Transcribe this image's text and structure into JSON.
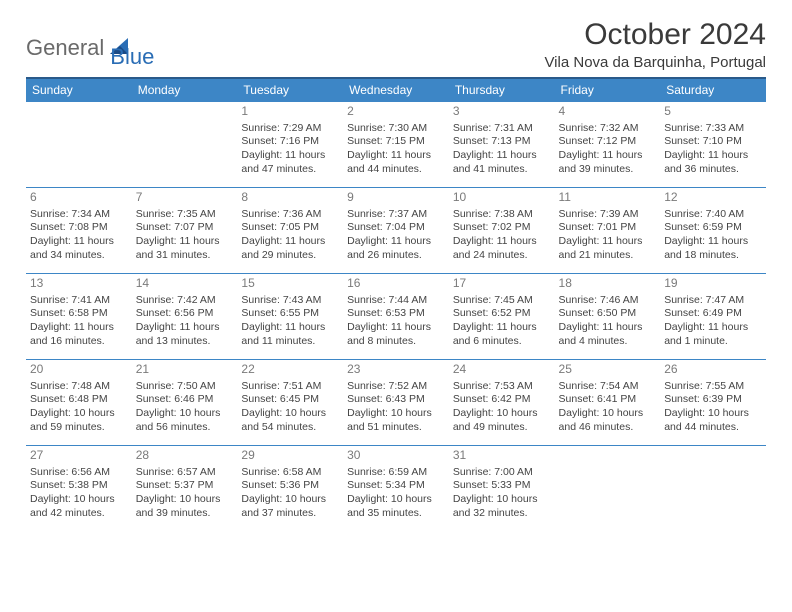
{
  "brand": {
    "part1": "General",
    "part2": "Blue"
  },
  "title": "October 2024",
  "location": "Vila Nova da Barquinha, Portugal",
  "colors": {
    "header_bg": "#3d86c6",
    "header_border": "#2a5a8a",
    "cell_border": "#3d86c6",
    "daynum": "#7a7a7a",
    "text": "#444444",
    "brand_gray": "#6a6a6a",
    "brand_blue": "#2a6db5"
  },
  "dayHeaders": [
    "Sunday",
    "Monday",
    "Tuesday",
    "Wednesday",
    "Thursday",
    "Friday",
    "Saturday"
  ],
  "weeks": [
    [
      null,
      null,
      {
        "n": "1",
        "sr": "7:29 AM",
        "ss": "7:16 PM",
        "dl": "11 hours and 47 minutes."
      },
      {
        "n": "2",
        "sr": "7:30 AM",
        "ss": "7:15 PM",
        "dl": "11 hours and 44 minutes."
      },
      {
        "n": "3",
        "sr": "7:31 AM",
        "ss": "7:13 PM",
        "dl": "11 hours and 41 minutes."
      },
      {
        "n": "4",
        "sr": "7:32 AM",
        "ss": "7:12 PM",
        "dl": "11 hours and 39 minutes."
      },
      {
        "n": "5",
        "sr": "7:33 AM",
        "ss": "7:10 PM",
        "dl": "11 hours and 36 minutes."
      }
    ],
    [
      {
        "n": "6",
        "sr": "7:34 AM",
        "ss": "7:08 PM",
        "dl": "11 hours and 34 minutes."
      },
      {
        "n": "7",
        "sr": "7:35 AM",
        "ss": "7:07 PM",
        "dl": "11 hours and 31 minutes."
      },
      {
        "n": "8",
        "sr": "7:36 AM",
        "ss": "7:05 PM",
        "dl": "11 hours and 29 minutes."
      },
      {
        "n": "9",
        "sr": "7:37 AM",
        "ss": "7:04 PM",
        "dl": "11 hours and 26 minutes."
      },
      {
        "n": "10",
        "sr": "7:38 AM",
        "ss": "7:02 PM",
        "dl": "11 hours and 24 minutes."
      },
      {
        "n": "11",
        "sr": "7:39 AM",
        "ss": "7:01 PM",
        "dl": "11 hours and 21 minutes."
      },
      {
        "n": "12",
        "sr": "7:40 AM",
        "ss": "6:59 PM",
        "dl": "11 hours and 18 minutes."
      }
    ],
    [
      {
        "n": "13",
        "sr": "7:41 AM",
        "ss": "6:58 PM",
        "dl": "11 hours and 16 minutes."
      },
      {
        "n": "14",
        "sr": "7:42 AM",
        "ss": "6:56 PM",
        "dl": "11 hours and 13 minutes."
      },
      {
        "n": "15",
        "sr": "7:43 AM",
        "ss": "6:55 PM",
        "dl": "11 hours and 11 minutes."
      },
      {
        "n": "16",
        "sr": "7:44 AM",
        "ss": "6:53 PM",
        "dl": "11 hours and 8 minutes."
      },
      {
        "n": "17",
        "sr": "7:45 AM",
        "ss": "6:52 PM",
        "dl": "11 hours and 6 minutes."
      },
      {
        "n": "18",
        "sr": "7:46 AM",
        "ss": "6:50 PM",
        "dl": "11 hours and 4 minutes."
      },
      {
        "n": "19",
        "sr": "7:47 AM",
        "ss": "6:49 PM",
        "dl": "11 hours and 1 minute."
      }
    ],
    [
      {
        "n": "20",
        "sr": "7:48 AM",
        "ss": "6:48 PM",
        "dl": "10 hours and 59 minutes."
      },
      {
        "n": "21",
        "sr": "7:50 AM",
        "ss": "6:46 PM",
        "dl": "10 hours and 56 minutes."
      },
      {
        "n": "22",
        "sr": "7:51 AM",
        "ss": "6:45 PM",
        "dl": "10 hours and 54 minutes."
      },
      {
        "n": "23",
        "sr": "7:52 AM",
        "ss": "6:43 PM",
        "dl": "10 hours and 51 minutes."
      },
      {
        "n": "24",
        "sr": "7:53 AM",
        "ss": "6:42 PM",
        "dl": "10 hours and 49 minutes."
      },
      {
        "n": "25",
        "sr": "7:54 AM",
        "ss": "6:41 PM",
        "dl": "10 hours and 46 minutes."
      },
      {
        "n": "26",
        "sr": "7:55 AM",
        "ss": "6:39 PM",
        "dl": "10 hours and 44 minutes."
      }
    ],
    [
      {
        "n": "27",
        "sr": "6:56 AM",
        "ss": "5:38 PM",
        "dl": "10 hours and 42 minutes."
      },
      {
        "n": "28",
        "sr": "6:57 AM",
        "ss": "5:37 PM",
        "dl": "10 hours and 39 minutes."
      },
      {
        "n": "29",
        "sr": "6:58 AM",
        "ss": "5:36 PM",
        "dl": "10 hours and 37 minutes."
      },
      {
        "n": "30",
        "sr": "6:59 AM",
        "ss": "5:34 PM",
        "dl": "10 hours and 35 minutes."
      },
      {
        "n": "31",
        "sr": "7:00 AM",
        "ss": "5:33 PM",
        "dl": "10 hours and 32 minutes."
      },
      null,
      null
    ]
  ],
  "labels": {
    "sunrise": "Sunrise: ",
    "sunset": "Sunset: ",
    "daylight": "Daylight: "
  }
}
